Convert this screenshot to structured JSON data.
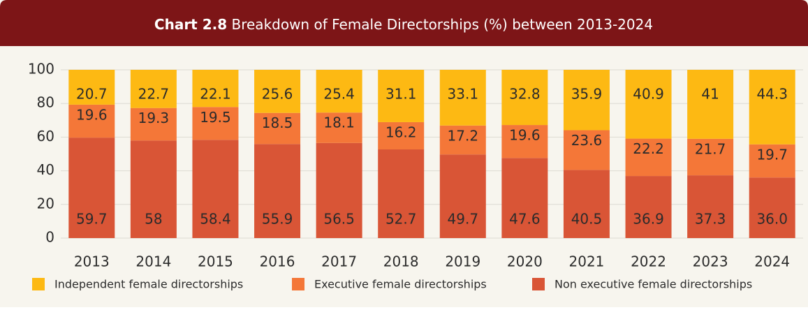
{
  "chart_data": {
    "type": "stacked_bar",
    "title_label": "Chart 2.8",
    "title": "Breakdown of Female Directorships (%) between 2013-2024",
    "categories": [
      "2013",
      "2014",
      "2015",
      "2016",
      "2017",
      "2018",
      "2019",
      "2020",
      "2021",
      "2022",
      "2023",
      "2024"
    ],
    "series": [
      {
        "name": "Non executive female directorships",
        "color": "#d95536",
        "values": [
          59.7,
          58,
          58.4,
          55.9,
          56.5,
          52.7,
          49.7,
          47.6,
          40.5,
          36.9,
          37.3,
          36.0
        ],
        "value_labels": [
          "59.7",
          "58",
          "58.4",
          "55.9",
          "56.5",
          "52.7",
          "49.7",
          "47.6",
          "40.5",
          "36.9",
          "37.3",
          "36.0"
        ]
      },
      {
        "name": "Executive female directorships",
        "color": "#f47738",
        "values": [
          19.6,
          19.3,
          19.5,
          18.5,
          18.1,
          16.2,
          17.2,
          19.6,
          23.6,
          22.2,
          21.7,
          19.7
        ]
      },
      {
        "name": "Independent female directorships",
        "color": "#fdb913",
        "values": [
          20.7,
          22.7,
          22.1,
          25.6,
          25.4,
          31.1,
          33.1,
          32.8,
          35.9,
          40.9,
          41,
          44.3
        ]
      }
    ],
    "ylim": [
      0,
      100
    ],
    "yticks": [
      0,
      20,
      40,
      60,
      80,
      100
    ],
    "grid": true
  }
}
